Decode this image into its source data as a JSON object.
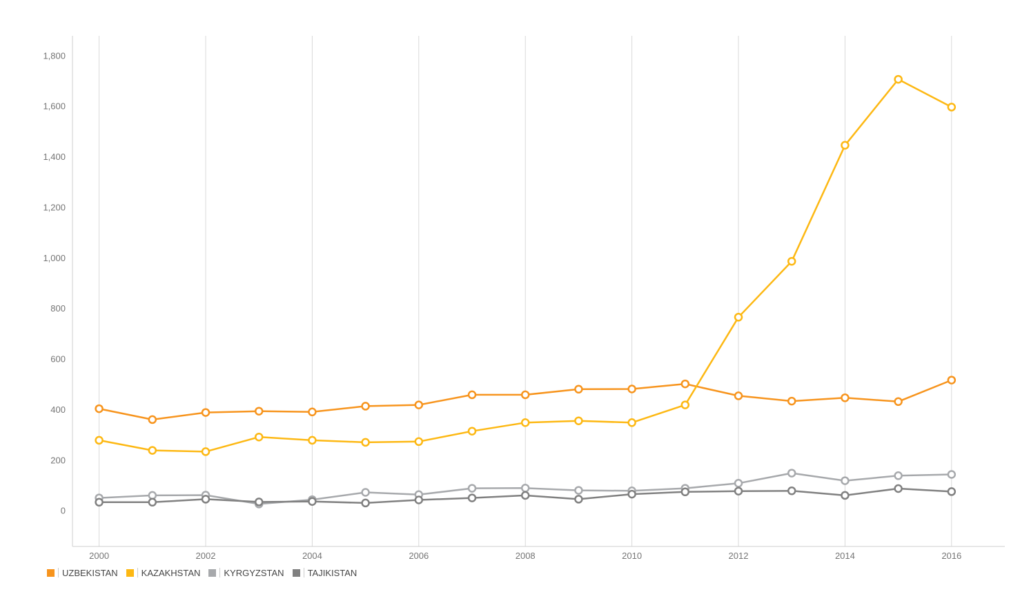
{
  "chart_data": {
    "type": "line",
    "x": [
      2000,
      2001,
      2002,
      2003,
      2004,
      2005,
      2006,
      2007,
      2008,
      2009,
      2010,
      2011,
      2012,
      2013,
      2014,
      2015,
      2016
    ],
    "x_ticks": [
      "2000",
      "2002",
      "2004",
      "2006",
      "2008",
      "2010",
      "2012",
      "2014",
      "2016"
    ],
    "y_ticks": [
      "0",
      "200",
      "400",
      "600",
      "800",
      "1,000",
      "1,200",
      "1,400",
      "1,600",
      "1,800"
    ],
    "xlim": [
      1999.5,
      2017
    ],
    "ylim": [
      -140,
      1880
    ],
    "grid": "vertical",
    "legend_position": "bottom-left",
    "series": [
      {
        "name": "UZBEKISTAN",
        "color": "#F7941D",
        "values": [
          405,
          362,
          390,
          395,
          392,
          415,
          420,
          460,
          460,
          482,
          483,
          503,
          456,
          435,
          448,
          433,
          518
        ]
      },
      {
        "name": "KAZAKHSTAN",
        "color": "#FDB813",
        "values": [
          280,
          240,
          235,
          293,
          280,
          272,
          275,
          316,
          350,
          357,
          350,
          420,
          767,
          988,
          1447,
          1708,
          1598
        ]
      },
      {
        "name": "KYRGYZSTAN",
        "color": "#A7A9AC",
        "values": [
          52,
          62,
          63,
          28,
          45,
          74,
          65,
          90,
          91,
          82,
          80,
          90,
          110,
          150,
          120,
          140,
          145
        ]
      },
      {
        "name": "TAJIKISTAN",
        "color": "#808080",
        "values": [
          35,
          35,
          47,
          36,
          38,
          32,
          44,
          52,
          62,
          47,
          67,
          76,
          79,
          80,
          62,
          89,
          77
        ]
      }
    ]
  }
}
